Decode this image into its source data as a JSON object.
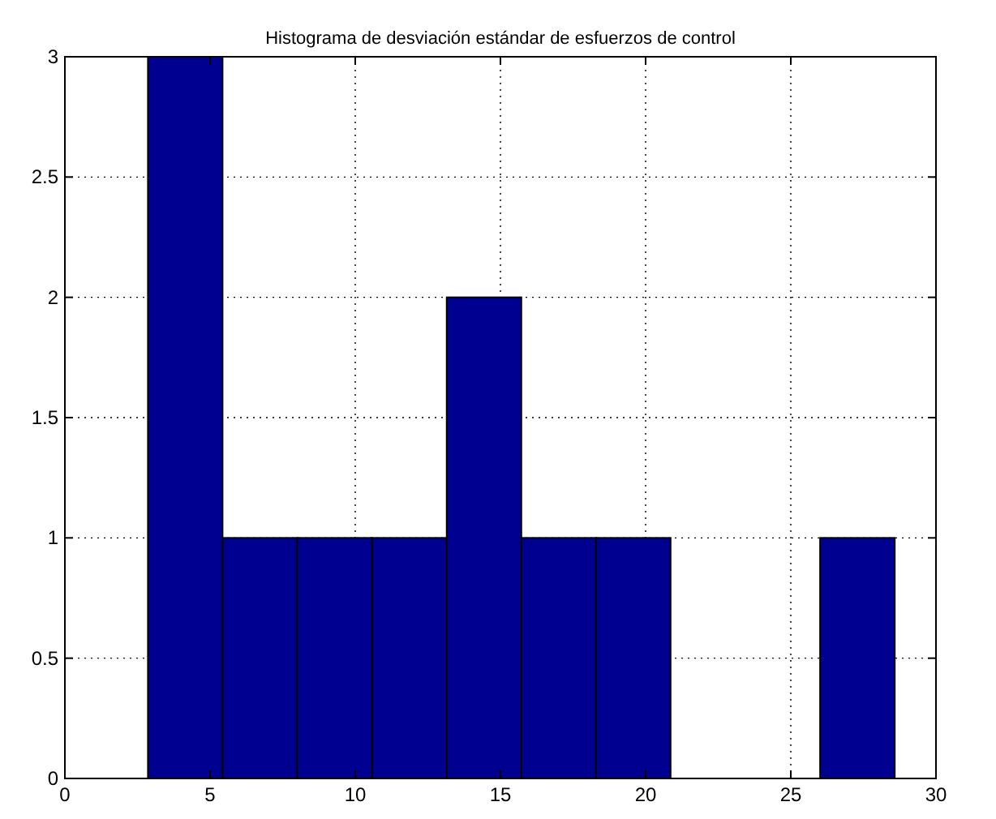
{
  "chart_data": {
    "type": "histogram",
    "title": "Histograma de desviación estándar de esfuerzos de control",
    "bins": [
      2.86,
      5.43,
      8.0,
      10.58,
      13.15,
      15.72,
      18.29,
      20.86,
      23.44,
      26.01,
      28.58
    ],
    "values": [
      3,
      1,
      1,
      1,
      2,
      1,
      1,
      0,
      0,
      1
    ],
    "color": "#000090",
    "xlim": [
      0,
      30
    ],
    "xticks": [
      0,
      5,
      10,
      15,
      20,
      25,
      30
    ],
    "ylim": [
      0,
      3
    ],
    "yticks": [
      0,
      0.5,
      1,
      1.5,
      2,
      2.5,
      3
    ],
    "grid": true
  }
}
